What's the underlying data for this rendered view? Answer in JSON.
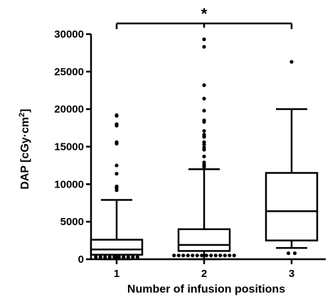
{
  "chart_data": {
    "type": "box",
    "ylabel_main": "DAP [cGy·cm",
    "ylabel_sup": "2",
    "ylabel_end": "]",
    "xlabel": "Number of infusion positions",
    "ylim": [
      0,
      30000
    ],
    "yticks": [
      0,
      5000,
      10000,
      15000,
      20000,
      25000,
      30000
    ],
    "categories": [
      "1",
      "2",
      "3"
    ],
    "boxes": [
      {
        "category": "1",
        "whisker_low": 0,
        "q1": 600,
        "median": 1300,
        "q3": 2600,
        "whisker_high": 7900,
        "outliers": [
          19200,
          19100,
          18000,
          17800,
          15600,
          15400,
          12500,
          11400,
          9700,
          9500,
          9200,
          300,
          300,
          300,
          300,
          300,
          300,
          300,
          300,
          300,
          300
        ]
      },
      {
        "category": "2",
        "whisker_low": 0,
        "q1": 1100,
        "median": 1900,
        "q3": 4000,
        "whisker_high": 12000,
        "outliers": [
          29300,
          28300,
          23200,
          21400,
          19800,
          18500,
          18300,
          17100,
          16600,
          16400,
          16300,
          15600,
          15300,
          14900,
          14600,
          13700,
          12900,
          12600,
          12500,
          12300,
          500,
          500,
          500,
          500,
          500,
          500,
          500,
          500,
          500,
          500,
          500,
          500,
          500,
          500
        ]
      },
      {
        "category": "3",
        "whisker_low": 1500,
        "q1": 2500,
        "median": 6400,
        "q3": 11500,
        "whisker_high": 20000,
        "outliers": [
          26300,
          800,
          800
        ]
      }
    ],
    "annotations": [
      {
        "text": "*",
        "from": "1",
        "to": "3",
        "y": 31000
      }
    ]
  }
}
